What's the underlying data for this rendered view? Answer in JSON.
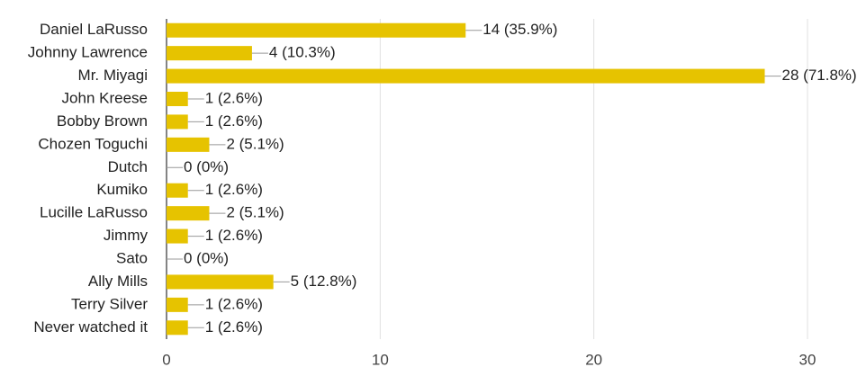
{
  "chart_data": {
    "type": "hbar",
    "categories": [
      "Daniel LaRusso",
      "Johnny Lawrence",
      "Mr. Miyagi",
      "John Kreese",
      "Bobby Brown",
      "Chozen Toguchi",
      "Dutch",
      "Kumiko",
      "Lucille LaRusso",
      "Jimmy",
      "Sato",
      "Ally Mills",
      "Terry Silver",
      "Never watched it"
    ],
    "values": [
      14,
      4,
      28,
      1,
      1,
      2,
      0,
      1,
      2,
      1,
      0,
      5,
      1,
      1
    ],
    "value_labels": [
      "14 (35.9%)",
      "4 (10.3%)",
      "28 (71.8%)",
      "1 (2.6%)",
      "1 (2.6%)",
      "2 (5.1%)",
      "0 (0%)",
      "1 (2.6%)",
      "2 (5.1%)",
      "1 (2.6%)",
      "0 (0%)",
      "5 (12.8%)",
      "1 (2.6%)",
      "1 (2.6%)"
    ],
    "color": "#e6c300",
    "xlim": [
      0,
      30
    ],
    "xticks": [
      0,
      10,
      20,
      30
    ],
    "grid": true
  }
}
